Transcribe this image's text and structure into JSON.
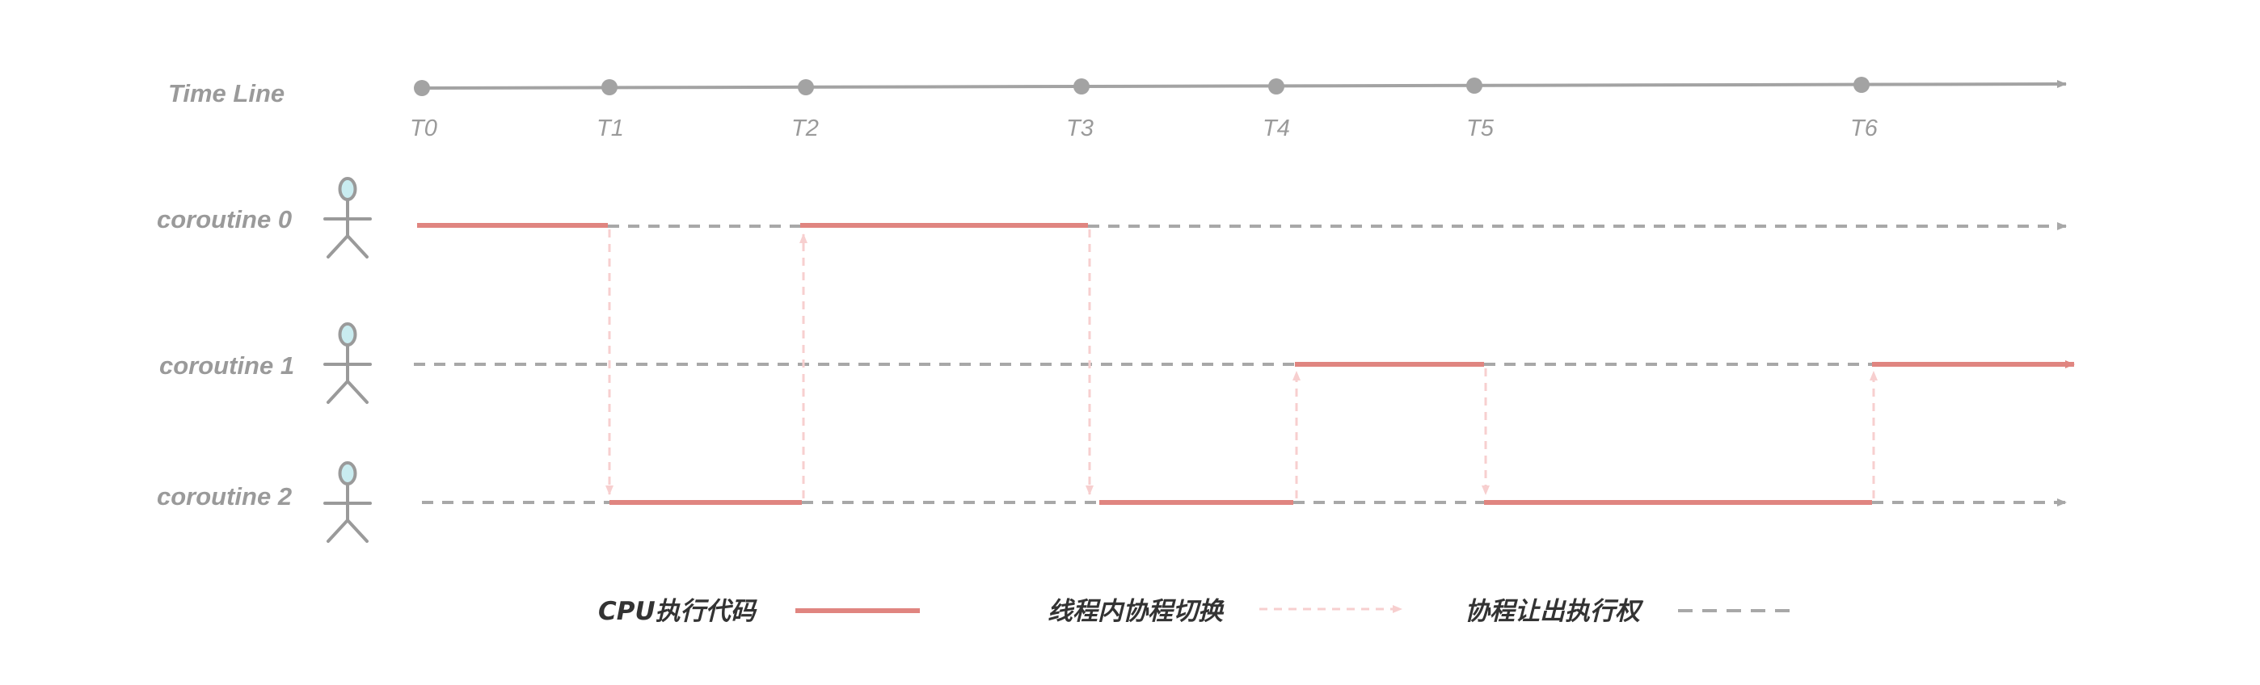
{
  "timeline": {
    "label": "Time Line",
    "ticks": [
      "T0",
      "T1",
      "T2",
      "T3",
      "T4",
      "T5",
      "T6"
    ]
  },
  "rows": [
    {
      "label": "coroutine 0"
    },
    {
      "label": "coroutine 1"
    },
    {
      "label": "coroutine 2"
    }
  ],
  "legend": {
    "cpu_exec": "CPU执行代码",
    "switch": "线程内协程切换",
    "yield": "协程让出执行权"
  },
  "colors": {
    "axis": "#a3a3a3",
    "exec": "#e08580",
    "switch": "#f7cfcf",
    "idle": "#a8a8a8",
    "actor_head": "#c9ecf0"
  },
  "icons": [
    "person-icon",
    "arrow-head-icon"
  ]
}
